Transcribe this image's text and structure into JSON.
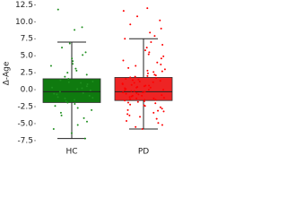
{
  "chart_data": {
    "type": "box",
    "y_label": "Δ-Age",
    "categories": [
      "HC",
      "PD"
    ],
    "colors": [
      "#0f7a0f",
      "#ee2424"
    ],
    "point_colors": [
      "#1f8f1f",
      "#ff0000"
    ],
    "whisker_low": [
      -7.2,
      -5.8
    ],
    "q1": [
      -1.9,
      -1.6
    ],
    "median": [
      -0.3,
      -0.3
    ],
    "q3": [
      1.6,
      1.8
    ],
    "whisker_high": [
      7.0,
      7.5
    ],
    "points": [
      [
        11.8,
        9.2,
        8.8,
        6.8,
        6.2,
        5.5,
        5.1,
        4.6,
        4.2,
        3.8,
        3.5,
        3.1,
        2.8,
        2.5,
        2.2,
        1.9,
        1.6,
        1.4,
        1.2,
        1.0,
        0.8,
        0.5,
        0.3,
        0.1,
        -0.1,
        -0.3,
        -0.5,
        -0.7,
        -0.9,
        -1.1,
        -1.3,
        -1.5,
        -1.7,
        -1.9,
        -2.1,
        -2.4,
        -2.7,
        -3.0,
        -3.4,
        -3.8,
        -4.2,
        -4.7,
        -5.2,
        -5.8,
        -6.4,
        -7.2,
        0.2,
        -0.6,
        1.1,
        -1.2
      ],
      [
        12.0,
        11.6,
        10.8,
        10.2,
        9.6,
        9.0,
        8.4,
        7.9,
        7.5,
        7.0,
        6.6,
        6.2,
        5.8,
        5.5,
        5.2,
        4.9,
        4.6,
        4.3,
        4.0,
        3.7,
        3.5,
        3.2,
        3.0,
        2.8,
        2.6,
        2.4,
        2.2,
        2.0,
        1.9,
        1.8,
        1.6,
        1.5,
        1.3,
        1.2,
        1.0,
        0.9,
        0.8,
        0.6,
        0.5,
        0.4,
        0.3,
        0.2,
        0.1,
        0.0,
        -0.1,
        -0.2,
        -0.3,
        -0.4,
        -0.5,
        -0.6,
        -0.7,
        -0.8,
        -0.9,
        -1.0,
        -1.1,
        -1.2,
        -1.3,
        -1.4,
        -1.5,
        -1.6,
        -1.7,
        -1.8,
        -1.9,
        -2.0,
        -2.2,
        -2.4,
        -2.6,
        -2.8,
        -3.0,
        -3.2,
        -3.4,
        -3.6,
        -3.8,
        -4.0,
        -4.3,
        -4.6,
        -4.9,
        -5.2,
        -5.5,
        -5.8,
        0.7,
        -0.2,
        1.4,
        -1.3,
        0.3,
        -0.9,
        2.1,
        -2.3,
        0.0,
        1.1,
        -0.4,
        -1.5,
        0.6,
        2.7,
        -3.1,
        1.7
      ]
    ],
    "ylim": [
      -8.3,
      13.2
    ],
    "yticks": [
      {
        "value": -7.5,
        "label": "-7.5"
      },
      {
        "value": -5,
        "label": "-5.0"
      },
      {
        "value": -2.5,
        "label": "-2.5"
      },
      {
        "value": 0,
        "label": "0.0"
      },
      {
        "value": 2.5,
        "label": "2.5"
      },
      {
        "value": 5,
        "label": "5.0"
      },
      {
        "value": 7.5,
        "label": "7.5"
      },
      {
        "value": 10,
        "label": "10.0"
      },
      {
        "value": 12.5,
        "label": "12.5"
      }
    ]
  }
}
